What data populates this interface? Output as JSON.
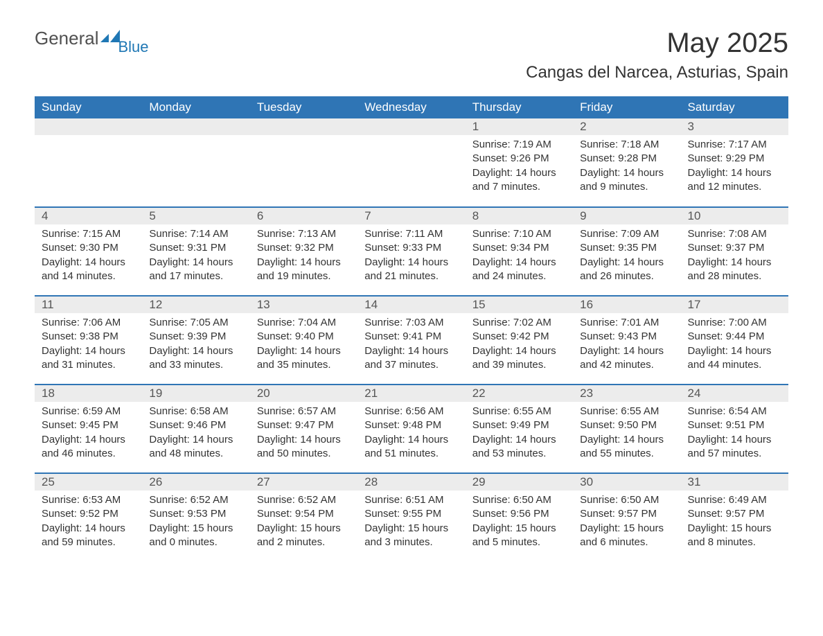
{
  "logo": {
    "main": "General",
    "sub": "Blue"
  },
  "title": {
    "month": "May 2025",
    "location": "Cangas del Narcea, Asturias, Spain"
  },
  "weekdays": [
    "Sunday",
    "Monday",
    "Tuesday",
    "Wednesday",
    "Thursday",
    "Friday",
    "Saturday"
  ],
  "colors": {
    "header_bg": "#2f75b5",
    "header_text": "#ffffff",
    "row_border": "#2f75b5",
    "daynum_bg": "#ececec",
    "body_text": "#333333",
    "logo_blue": "#1f77b4",
    "logo_gray": "#505050",
    "page_bg": "#ffffff"
  },
  "layout": {
    "cols": 7,
    "rows": 5,
    "leading_blanks": 4
  },
  "days": [
    {
      "n": "1",
      "sunrise": "7:19 AM",
      "sunset": "9:26 PM",
      "daylight": "14 hours and 7 minutes."
    },
    {
      "n": "2",
      "sunrise": "7:18 AM",
      "sunset": "9:28 PM",
      "daylight": "14 hours and 9 minutes."
    },
    {
      "n": "3",
      "sunrise": "7:17 AM",
      "sunset": "9:29 PM",
      "daylight": "14 hours and 12 minutes."
    },
    {
      "n": "4",
      "sunrise": "7:15 AM",
      "sunset": "9:30 PM",
      "daylight": "14 hours and 14 minutes."
    },
    {
      "n": "5",
      "sunrise": "7:14 AM",
      "sunset": "9:31 PM",
      "daylight": "14 hours and 17 minutes."
    },
    {
      "n": "6",
      "sunrise": "7:13 AM",
      "sunset": "9:32 PM",
      "daylight": "14 hours and 19 minutes."
    },
    {
      "n": "7",
      "sunrise": "7:11 AM",
      "sunset": "9:33 PM",
      "daylight": "14 hours and 21 minutes."
    },
    {
      "n": "8",
      "sunrise": "7:10 AM",
      "sunset": "9:34 PM",
      "daylight": "14 hours and 24 minutes."
    },
    {
      "n": "9",
      "sunrise": "7:09 AM",
      "sunset": "9:35 PM",
      "daylight": "14 hours and 26 minutes."
    },
    {
      "n": "10",
      "sunrise": "7:08 AM",
      "sunset": "9:37 PM",
      "daylight": "14 hours and 28 minutes."
    },
    {
      "n": "11",
      "sunrise": "7:06 AM",
      "sunset": "9:38 PM",
      "daylight": "14 hours and 31 minutes."
    },
    {
      "n": "12",
      "sunrise": "7:05 AM",
      "sunset": "9:39 PM",
      "daylight": "14 hours and 33 minutes."
    },
    {
      "n": "13",
      "sunrise": "7:04 AM",
      "sunset": "9:40 PM",
      "daylight": "14 hours and 35 minutes."
    },
    {
      "n": "14",
      "sunrise": "7:03 AM",
      "sunset": "9:41 PM",
      "daylight": "14 hours and 37 minutes."
    },
    {
      "n": "15",
      "sunrise": "7:02 AM",
      "sunset": "9:42 PM",
      "daylight": "14 hours and 39 minutes."
    },
    {
      "n": "16",
      "sunrise": "7:01 AM",
      "sunset": "9:43 PM",
      "daylight": "14 hours and 42 minutes."
    },
    {
      "n": "17",
      "sunrise": "7:00 AM",
      "sunset": "9:44 PM",
      "daylight": "14 hours and 44 minutes."
    },
    {
      "n": "18",
      "sunrise": "6:59 AM",
      "sunset": "9:45 PM",
      "daylight": "14 hours and 46 minutes."
    },
    {
      "n": "19",
      "sunrise": "6:58 AM",
      "sunset": "9:46 PM",
      "daylight": "14 hours and 48 minutes."
    },
    {
      "n": "20",
      "sunrise": "6:57 AM",
      "sunset": "9:47 PM",
      "daylight": "14 hours and 50 minutes."
    },
    {
      "n": "21",
      "sunrise": "6:56 AM",
      "sunset": "9:48 PM",
      "daylight": "14 hours and 51 minutes."
    },
    {
      "n": "22",
      "sunrise": "6:55 AM",
      "sunset": "9:49 PM",
      "daylight": "14 hours and 53 minutes."
    },
    {
      "n": "23",
      "sunrise": "6:55 AM",
      "sunset": "9:50 PM",
      "daylight": "14 hours and 55 minutes."
    },
    {
      "n": "24",
      "sunrise": "6:54 AM",
      "sunset": "9:51 PM",
      "daylight": "14 hours and 57 minutes."
    },
    {
      "n": "25",
      "sunrise": "6:53 AM",
      "sunset": "9:52 PM",
      "daylight": "14 hours and 59 minutes."
    },
    {
      "n": "26",
      "sunrise": "6:52 AM",
      "sunset": "9:53 PM",
      "daylight": "15 hours and 0 minutes."
    },
    {
      "n": "27",
      "sunrise": "6:52 AM",
      "sunset": "9:54 PM",
      "daylight": "15 hours and 2 minutes."
    },
    {
      "n": "28",
      "sunrise": "6:51 AM",
      "sunset": "9:55 PM",
      "daylight": "15 hours and 3 minutes."
    },
    {
      "n": "29",
      "sunrise": "6:50 AM",
      "sunset": "9:56 PM",
      "daylight": "15 hours and 5 minutes."
    },
    {
      "n": "30",
      "sunrise": "6:50 AM",
      "sunset": "9:57 PM",
      "daylight": "15 hours and 6 minutes."
    },
    {
      "n": "31",
      "sunrise": "6:49 AM",
      "sunset": "9:57 PM",
      "daylight": "15 hours and 8 minutes."
    }
  ],
  "labels": {
    "sunrise": "Sunrise: ",
    "sunset": "Sunset: ",
    "daylight": "Daylight: "
  }
}
